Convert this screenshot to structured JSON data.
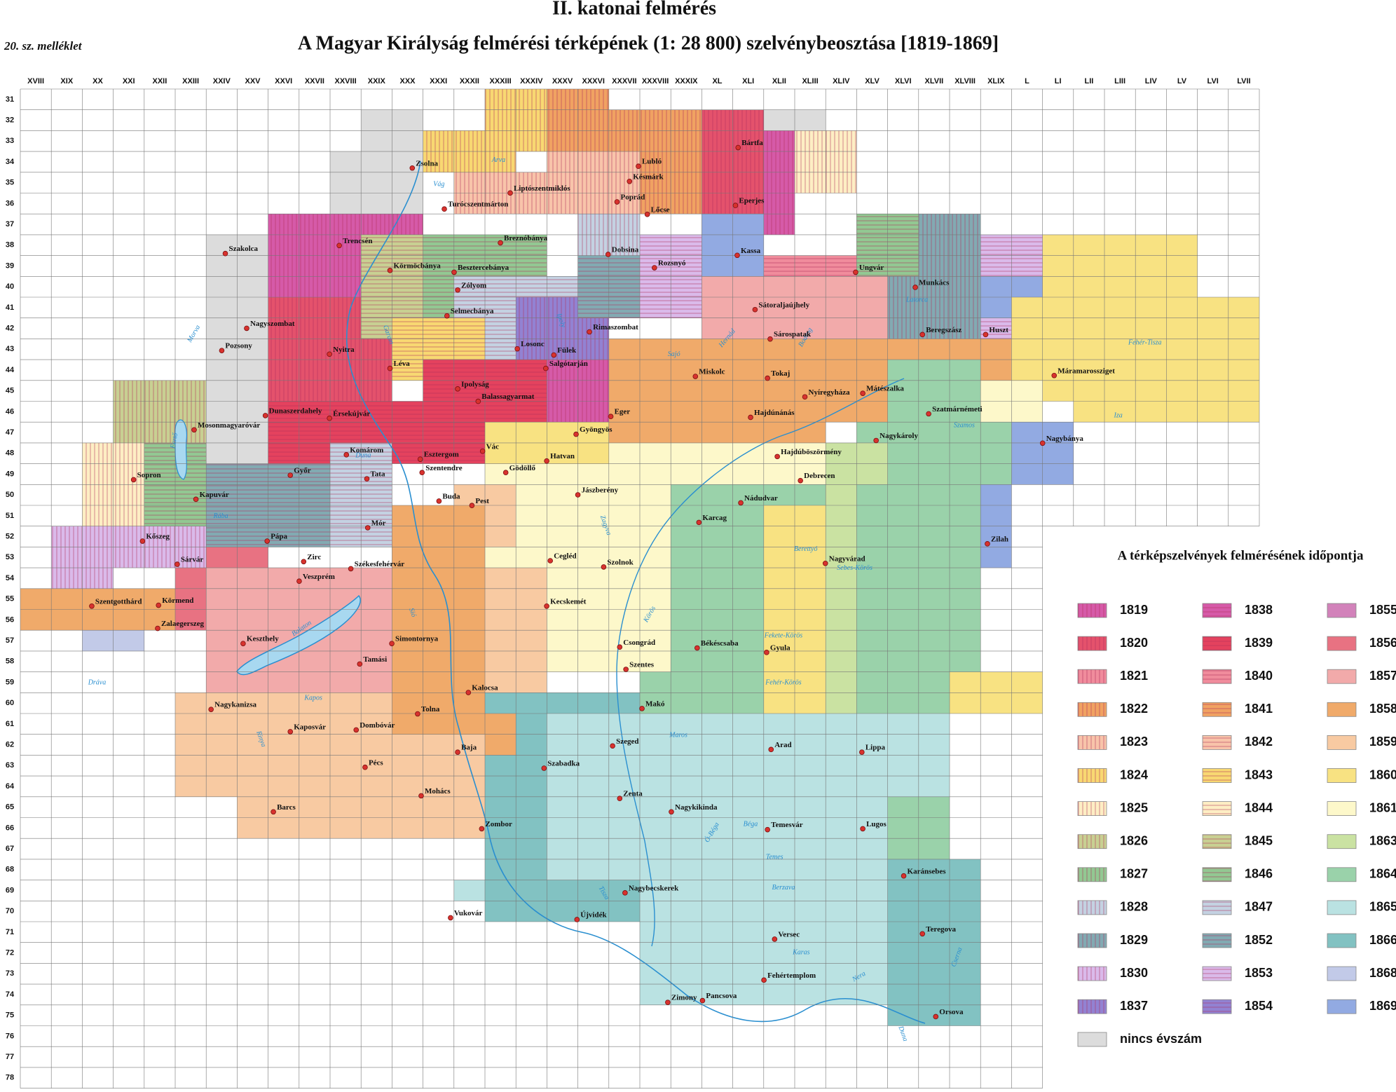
{
  "header": {
    "title": "II. katonai felmérés",
    "subtitle": "A Magyar Királyság felmérési térképének (1: 28 800) szelvénybeosztása [1819-1869]",
    "annex": "20. sz. melléklet"
  },
  "grid": {
    "columns": [
      "XVIII",
      "XIX",
      "XX",
      "XXI",
      "XXII",
      "XXIII",
      "XXIV",
      "XXV",
      "XXVI",
      "XXVII",
      "XXVIII",
      "XXIX",
      "XXX",
      "XXXI",
      "XXXII",
      "XXXIII",
      "XXXIV",
      "XXXV",
      "XXXVI",
      "XXXVII",
      "XXXVIII",
      "XXXIX",
      "XL",
      "XLI",
      "XLII",
      "XLIII",
      "XLIV",
      "XLV",
      "XLVI",
      "XLVII",
      "XLVIII",
      "XLIX",
      "L",
      "LI",
      "LII",
      "LIII",
      "LIV",
      "LV",
      "LVI",
      "LVII"
    ],
    "rows": [
      "31",
      "32",
      "33",
      "34",
      "35",
      "36",
      "37",
      "38",
      "39",
      "40",
      "41",
      "42",
      "43",
      "44",
      "45",
      "46",
      "47",
      "48",
      "49",
      "50",
      "51",
      "52",
      "53",
      "54",
      "55",
      "56",
      "57",
      "58",
      "59",
      "60",
      "61",
      "62",
      "63",
      "64",
      "65",
      "66",
      "67",
      "68",
      "69",
      "70",
      "71",
      "72",
      "73",
      "74",
      "75",
      "76",
      "77",
      "78"
    ]
  },
  "legend": {
    "title": "A térképszelvények felmérésének időpontja",
    "items": [
      {
        "label": "1819",
        "color": "#d65aa8",
        "pattern": "vertical"
      },
      {
        "label": "1820",
        "color": "#e4526c",
        "pattern": "vertical"
      },
      {
        "label": "1821",
        "color": "#f08c9c",
        "pattern": "vertical"
      },
      {
        "label": "1822",
        "color": "#f0a262",
        "pattern": "vertical"
      },
      {
        "label": "1823",
        "color": "#f8c4aa",
        "pattern": "vertical"
      },
      {
        "label": "1824",
        "color": "#f8d872",
        "pattern": "vertical"
      },
      {
        "label": "1825",
        "color": "#fdeec4",
        "pattern": "vertical"
      },
      {
        "label": "1826",
        "color": "#c8d092",
        "pattern": "vertical"
      },
      {
        "label": "1827",
        "color": "#92c892",
        "pattern": "vertical"
      },
      {
        "label": "1828",
        "color": "#c4d2e2",
        "pattern": "vertical"
      },
      {
        "label": "1829",
        "color": "#82aab2",
        "pattern": "vertical"
      },
      {
        "label": "1830",
        "color": "#dabaea",
        "pattern": "vertical"
      },
      {
        "label": "1837",
        "color": "#9282d2",
        "pattern": "vertical"
      },
      {
        "label": "1838",
        "color": "#d65aa8",
        "pattern": "horizontal"
      },
      {
        "label": "1839",
        "color": "#e4425e",
        "pattern": "horizontal"
      },
      {
        "label": "1840",
        "color": "#f08c9c",
        "pattern": "horizontal"
      },
      {
        "label": "1841",
        "color": "#f0a262",
        "pattern": "horizontal"
      },
      {
        "label": "1842",
        "color": "#f8c4aa",
        "pattern": "horizontal"
      },
      {
        "label": "1843",
        "color": "#f8d872",
        "pattern": "horizontal"
      },
      {
        "label": "1844",
        "color": "#fdeec4",
        "pattern": "horizontal"
      },
      {
        "label": "1845",
        "color": "#c8d092",
        "pattern": "horizontal"
      },
      {
        "label": "1846",
        "color": "#92c892",
        "pattern": "horizontal"
      },
      {
        "label": "1847",
        "color": "#c4d2e2",
        "pattern": "horizontal"
      },
      {
        "label": "1852",
        "color": "#82aab2",
        "pattern": "horizontal"
      },
      {
        "label": "1853",
        "color": "#dabaea",
        "pattern": "horizontal"
      },
      {
        "label": "1854",
        "color": "#9282d2",
        "pattern": "horizontal"
      },
      {
        "label": "1855",
        "color": "#d282ba",
        "pattern": "solid"
      },
      {
        "label": "1856",
        "color": "#e87282",
        "pattern": "solid"
      },
      {
        "label": "1857",
        "color": "#f2aaaa",
        "pattern": "solid"
      },
      {
        "label": "1858",
        "color": "#f0aa6a",
        "pattern": "solid"
      },
      {
        "label": "1859",
        "color": "#f8caa2",
        "pattern": "solid"
      },
      {
        "label": "1860",
        "color": "#f8e282",
        "pattern": "solid"
      },
      {
        "label": "1861",
        "color": "#fdf8ca",
        "pattern": "solid"
      },
      {
        "label": "1863",
        "color": "#cae2a2",
        "pattern": "solid"
      },
      {
        "label": "1864",
        "color": "#9ad2aa",
        "pattern": "solid"
      },
      {
        "label": "1865",
        "color": "#bae2e2",
        "pattern": "solid"
      },
      {
        "label": "1866",
        "color": "#82c2c2",
        "pattern": "solid"
      },
      {
        "label": "1868",
        "color": "#c2cae8",
        "pattern": "solid"
      },
      {
        "label": "1869",
        "color": "#92aae2",
        "pattern": "solid"
      },
      {
        "label": "nincs évszám",
        "color": "#dcdcdc",
        "pattern": "solid"
      }
    ]
  },
  "cities": [
    {
      "name": "Bártfa"
    },
    {
      "name": "Lubló"
    },
    {
      "name": "Késmárk"
    },
    {
      "name": "Liptószentmiklós"
    },
    {
      "name": "Poprád"
    },
    {
      "name": "Zsolna"
    },
    {
      "name": "Turócszentmárton"
    },
    {
      "name": "Eperjes"
    },
    {
      "name": "Lőcse"
    },
    {
      "name": "Szakolca"
    },
    {
      "name": "Trencsén"
    },
    {
      "name": "Breznóbánya"
    },
    {
      "name": "Dobsina"
    },
    {
      "name": "Kassa"
    },
    {
      "name": "Rozsnyó"
    },
    {
      "name": "Körmöcbánya"
    },
    {
      "name": "Besztercebánya"
    },
    {
      "name": "Ungvár"
    },
    {
      "name": "Zólyom"
    },
    {
      "name": "Munkács"
    },
    {
      "name": "Selmecbánya"
    },
    {
      "name": "Sátoraljaújhely"
    },
    {
      "name": "Nagyszombat"
    },
    {
      "name": "Rimaszombat"
    },
    {
      "name": "Beregszász"
    },
    {
      "name": "Huszt"
    },
    {
      "name": "Sárospatak"
    },
    {
      "name": "Pozsony"
    },
    {
      "name": "Nyitra"
    },
    {
      "name": "Losonc"
    },
    {
      "name": "Fülek"
    },
    {
      "name": "Máramarossziget"
    },
    {
      "name": "Salgótarján"
    },
    {
      "name": "Léva"
    },
    {
      "name": "Miskolc"
    },
    {
      "name": "Tokaj"
    },
    {
      "name": "Ipolyság"
    },
    {
      "name": "Balassagyarmat"
    },
    {
      "name": "Nyíregyháza"
    },
    {
      "name": "Mátészalka"
    },
    {
      "name": "Dunaszerdahely"
    },
    {
      "name": "Érsekújvár"
    },
    {
      "name": "Eger"
    },
    {
      "name": "Szatmárnémeti"
    },
    {
      "name": "Hajdúnánás"
    },
    {
      "name": "Mosonmagyaróvár"
    },
    {
      "name": "Gyöngyös"
    },
    {
      "name": "Nagykároly"
    },
    {
      "name": "Nagybánya"
    },
    {
      "name": "Komárom"
    },
    {
      "name": "Esztergom"
    },
    {
      "name": "Vác"
    },
    {
      "name": "Hajdúböszörmény"
    },
    {
      "name": "Hatvan"
    },
    {
      "name": "Szentendre"
    },
    {
      "name": "Gödöllő"
    },
    {
      "name": "Tata"
    },
    {
      "name": "Győr"
    },
    {
      "name": "Sopron"
    },
    {
      "name": "Debrecen"
    },
    {
      "name": "Jászberény"
    },
    {
      "name": "Buda"
    },
    {
      "name": "Pest"
    },
    {
      "name": "Nádudvar"
    },
    {
      "name": "Kapuvár"
    },
    {
      "name": "Karcag"
    },
    {
      "name": "Mór"
    },
    {
      "name": "Pápa"
    },
    {
      "name": "Zilah"
    },
    {
      "name": "Kőszeg"
    },
    {
      "name": "Zirc"
    },
    {
      "name": "Sárvár"
    },
    {
      "name": "Székesfehérvár"
    },
    {
      "name": "Cegléd"
    },
    {
      "name": "Szolnok"
    },
    {
      "name": "Nagyvárad"
    },
    {
      "name": "Veszprém"
    },
    {
      "name": "Kecskemét"
    },
    {
      "name": "Szentgotthárd"
    },
    {
      "name": "Körmend"
    },
    {
      "name": "Zalaegerszeg"
    },
    {
      "name": "Keszthely"
    },
    {
      "name": "Simontornya"
    },
    {
      "name": "Csongrád"
    },
    {
      "name": "Békéscsaba"
    },
    {
      "name": "Gyula"
    },
    {
      "name": "Tamási"
    },
    {
      "name": "Szentes"
    },
    {
      "name": "Kalocsa"
    },
    {
      "name": "Nagykanizsa"
    },
    {
      "name": "Makó"
    },
    {
      "name": "Tolna"
    },
    {
      "name": "Kaposvár"
    },
    {
      "name": "Dombóvár"
    },
    {
      "name": "Szeged"
    },
    {
      "name": "Arad"
    },
    {
      "name": "Lippa"
    },
    {
      "name": "Baja"
    },
    {
      "name": "Pécs"
    },
    {
      "name": "Szabadka"
    },
    {
      "name": "Mohács"
    },
    {
      "name": "Zenta"
    },
    {
      "name": "Barcs"
    },
    {
      "name": "Nagykikinda"
    },
    {
      "name": "Zombor"
    },
    {
      "name": "Temesvár"
    },
    {
      "name": "Lugos"
    },
    {
      "name": "Karánsebes"
    },
    {
      "name": "Nagybecskerek"
    },
    {
      "name": "Vukovár"
    },
    {
      "name": "Újvidék"
    },
    {
      "name": "Versec"
    },
    {
      "name": "Teregova"
    },
    {
      "name": "Fehértemplom"
    },
    {
      "name": "Zimony"
    },
    {
      "name": "Pancsova"
    },
    {
      "name": "Orsova"
    }
  ],
  "rivers": [
    {
      "name": "Duna"
    },
    {
      "name": "Duna"
    },
    {
      "name": "Tisza"
    },
    {
      "name": "Balaton"
    },
    {
      "name": "Fertő"
    },
    {
      "name": "Maros"
    },
    {
      "name": "Körös"
    },
    {
      "name": "Dráva"
    },
    {
      "name": "Vág"
    },
    {
      "name": "Garam"
    },
    {
      "name": "Ipoly"
    },
    {
      "name": "Zagyva"
    },
    {
      "name": "Rába"
    },
    {
      "name": "Sajó"
    },
    {
      "name": "Hernád"
    },
    {
      "name": "Bodrog"
    },
    {
      "name": "Szamos"
    },
    {
      "name": "Temes"
    },
    {
      "name": "Béga"
    },
    {
      "name": "Kapos"
    },
    {
      "name": "Sió"
    },
    {
      "name": "Morva"
    },
    {
      "name": "Berettyó"
    },
    {
      "name": "Latorca"
    },
    {
      "name": "Iza"
    },
    {
      "name": "Fehér-Tisza"
    },
    {
      "name": "Fekete-Körös"
    },
    {
      "name": "Fehér-Körös"
    },
    {
      "name": "Sebes-Körös"
    },
    {
      "name": "Cserna"
    },
    {
      "name": "Nera"
    },
    {
      "name": "Berzava"
    },
    {
      "name": "Karas"
    },
    {
      "name": "Arva"
    },
    {
      "name": "Rinya"
    },
    {
      "name": "Ó-Béga"
    }
  ]
}
